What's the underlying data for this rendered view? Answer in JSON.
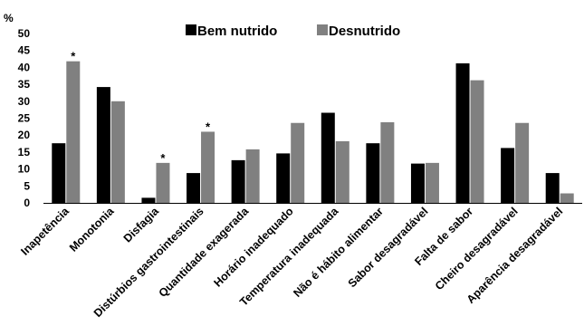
{
  "chart_data": {
    "type": "bar",
    "ylabel": "%",
    "ylim": [
      0,
      50
    ],
    "yticks": [
      0,
      5,
      10,
      15,
      20,
      25,
      30,
      35,
      40,
      45,
      50
    ],
    "grid": false,
    "legend_position": "top",
    "categories": [
      "Inapetência",
      "Monotonia",
      "Disfagia",
      "Distúrbios gastrointestinais",
      "Quantidade exagerada",
      "Horário inadequado",
      "Temperatura inadequada",
      "Não é hábito alimentar",
      "Sabor desagradável",
      "Falta de sabor",
      "Cheiro desagradável",
      "Aparência desagradável"
    ],
    "series": [
      {
        "name": "Bem nutrido",
        "color": "#000000",
        "values": [
          17.6,
          34.2,
          1.5,
          8.8,
          12.6,
          14.6,
          26.6,
          17.6,
          11.6,
          41.2,
          16.2,
          8.8
        ]
      },
      {
        "name": "Desnutrido",
        "color": "#808080",
        "values": [
          41.8,
          30.0,
          11.8,
          21.0,
          15.8,
          23.6,
          18.2,
          23.8,
          11.8,
          36.2,
          23.6,
          2.8
        ]
      }
    ],
    "annotations": [
      {
        "category": "Inapetência",
        "series": "Desnutrido",
        "text": "*"
      },
      {
        "category": "Disfagia",
        "series": "Desnutrido",
        "text": "*"
      },
      {
        "category": "Distúrbios gastrointestinais",
        "series": "Desnutrido",
        "text": "*"
      }
    ]
  }
}
